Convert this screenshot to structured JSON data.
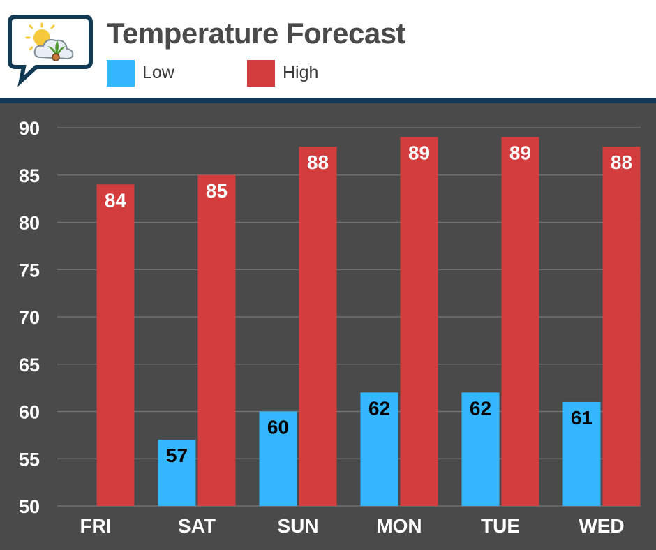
{
  "header": {
    "title": "Temperature Forecast",
    "legend": [
      {
        "label": "Low",
        "color": "#35b7ff"
      },
      {
        "label": "High",
        "color": "#d43d3d"
      }
    ],
    "logo_icon": "sun-cloud-cannabis-icon"
  },
  "chart_data": {
    "type": "bar",
    "title": "Temperature Forecast",
    "xlabel": "",
    "ylabel": "",
    "categories": [
      "FRI",
      "SAT",
      "SUN",
      "MON",
      "TUE",
      "WED"
    ],
    "ylim": [
      50,
      90
    ],
    "yticks": [
      50,
      55,
      60,
      65,
      70,
      75,
      80,
      85,
      90
    ],
    "grid": true,
    "legend_position": "top",
    "series": [
      {
        "name": "Low",
        "color": "#35b7ff",
        "label_color": "#000000",
        "values": [
          null,
          57,
          60,
          62,
          62,
          61
        ]
      },
      {
        "name": "High",
        "color": "#d43d3d",
        "label_color": "#ffffff",
        "values": [
          84,
          85,
          88,
          89,
          89,
          88
        ]
      }
    ]
  }
}
